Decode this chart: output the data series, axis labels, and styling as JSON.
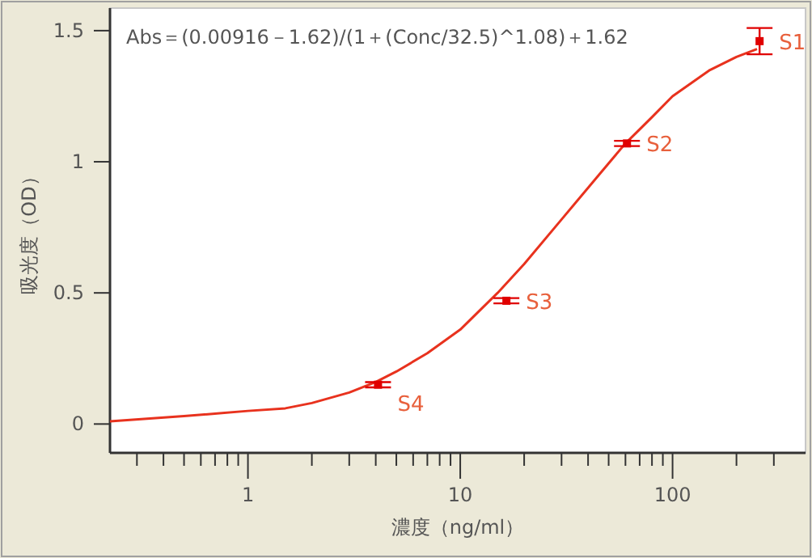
{
  "chart_data": {
    "type": "scatter",
    "title": "Abs＝(0.00916－1.62)/(1＋(Conc/32.5)^1.08)＋1.62",
    "xlabel": "濃度（ng/ml）",
    "ylabel": "吸光度（OD）",
    "log": "x",
    "xlim": [
      0.224,
      423
    ],
    "ylim": [
      -0.11,
      1.586
    ],
    "xticks": [
      {
        "value": 0.3,
        "label": null
      },
      {
        "value": 0.4,
        "label": null
      },
      {
        "value": 0.5,
        "label": null
      },
      {
        "value": 0.6,
        "label": null
      },
      {
        "value": 0.7,
        "label": null
      },
      {
        "value": 0.8,
        "label": null
      },
      {
        "value": 0.9,
        "label": null
      },
      1,
      {
        "value": 2,
        "label": null
      },
      {
        "value": 3,
        "label": null
      },
      {
        "value": 4,
        "label": null
      },
      {
        "value": 5,
        "label": null
      },
      {
        "value": 6,
        "label": null
      },
      {
        "value": 7,
        "label": null
      },
      {
        "value": 8,
        "label": null
      },
      {
        "value": 9,
        "label": null
      },
      10,
      {
        "value": 20,
        "label": null
      },
      {
        "value": 30,
        "label": null
      },
      {
        "value": 40,
        "label": null
      },
      {
        "value": 50,
        "label": null
      },
      {
        "value": 60,
        "label": null
      },
      {
        "value": 70,
        "label": null
      },
      {
        "value": 80,
        "label": null
      },
      {
        "value": 90,
        "label": null
      },
      100,
      {
        "value": 200,
        "label": null
      },
      {
        "value": 300,
        "label": null
      }
    ],
    "yticks": [
      0,
      0.5,
      1,
      1.5
    ],
    "grid": false,
    "series": [
      {
        "type": "line",
        "color": "#e8321e",
        "x": [
          0.224,
          0.5,
          1,
          1.5,
          2,
          3,
          4,
          5,
          7,
          10,
          15,
          20,
          30,
          45,
          60,
          80,
          100,
          150,
          200,
          250
        ],
        "values": [
          0.01,
          0.03,
          0.05,
          0.06,
          0.08,
          0.12,
          0.16,
          0.2,
          0.27,
          0.36,
          0.5,
          0.61,
          0.78,
          0.95,
          1.07,
          1.17,
          1.25,
          1.35,
          1.4,
          1.43
        ]
      },
      {
        "marker": "square",
        "color": "#e00000",
        "x": [
          257,
          61,
          16.5,
          4.1
        ],
        "values": [
          1.46,
          1.07,
          0.47,
          0.15
        ],
        "errors": [
          0.05,
          0.01,
          0.01,
          0.01
        ]
      }
    ],
    "annotations": [
      {
        "text": "S1",
        "x": 257,
        "y": 1.46
      },
      {
        "text": "S2",
        "x": 61,
        "y": 1.07
      },
      {
        "text": "S3",
        "x": 16.5,
        "y": 0.47
      },
      {
        "text": "S4",
        "x": 4.1,
        "y": 0.15
      }
    ]
  }
}
